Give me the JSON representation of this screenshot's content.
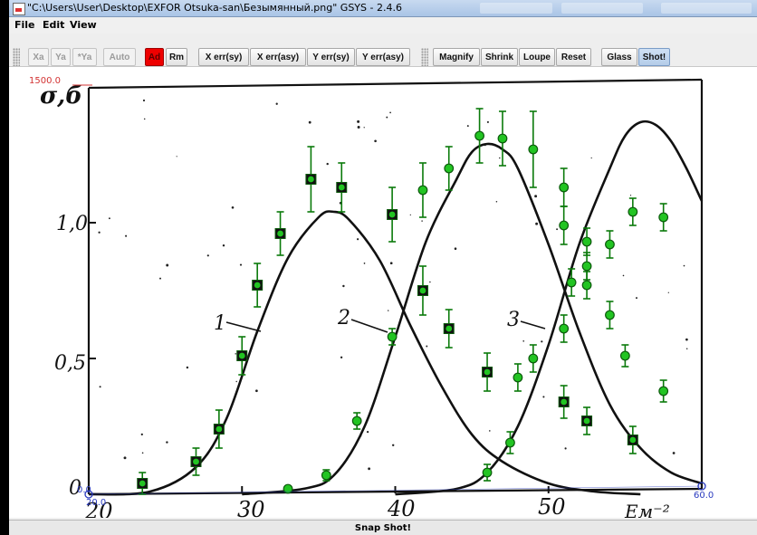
{
  "window": {
    "title": "\"C:\\Users\\User\\Desktop\\EXFOR Otsuka-san\\Безымянный.png\" GSYS - 2.4.6"
  },
  "menu": {
    "file": "File",
    "edit": "Edit",
    "view": "View"
  },
  "toolbar": {
    "xa": "Xa",
    "ya": "Ya",
    "star_ya": "*Ya",
    "auto": "Auto",
    "ad": "Ad",
    "rm": "Rm",
    "x_err_sy": "X err(sy)",
    "x_err_asy": "X err(asy)",
    "y_err_sy": "Y err(sy)",
    "y_err_asy": "Y err(asy)",
    "magnify": "Magnify",
    "shrink": "Shrink",
    "loupe": "Loupe",
    "reset": "Reset",
    "glass": "Glass",
    "shot": "Shot!"
  },
  "status": {
    "label": "Snap Shot!"
  },
  "digitizer": {
    "y_ref_max": "1500.0",
    "y_ref_min": "0.0",
    "x_ref_min": "20.0",
    "x_ref_max": "60.0",
    "colors": {
      "marker": "#22c422",
      "marker_dark": "#0c5a0c",
      "error_bar": "#0a7a0a",
      "ref": "#d33333",
      "ref_blue": "#2a3bbf"
    }
  },
  "chart_data": {
    "type": "scatter",
    "title": "",
    "ylabel": "σ,б",
    "xlabel": "",
    "xlim": [
      20,
      60
    ],
    "ylim": [
      0,
      1.5
    ],
    "x_ticks": [
      "20",
      "30",
      "40",
      "50"
    ],
    "y_ticks": [
      "0",
      "0,5",
      "1,0"
    ],
    "curve_labels": [
      "1",
      "2",
      "3"
    ],
    "axis_fragment": "Ем⁻²",
    "curves": [
      {
        "name": "1",
        "points": [
          [
            20,
            0
          ],
          [
            24,
            0.01
          ],
          [
            27,
            0.1
          ],
          [
            29,
            0.28
          ],
          [
            31,
            0.6
          ],
          [
            33,
            0.87
          ],
          [
            35,
            1.02
          ],
          [
            36,
            1.04
          ],
          [
            37,
            1.01
          ],
          [
            39,
            0.86
          ],
          [
            41,
            0.62
          ],
          [
            43,
            0.4
          ],
          [
            45,
            0.22
          ],
          [
            47,
            0.12
          ],
          [
            50,
            0.04
          ],
          [
            53,
            0.01
          ],
          [
            56,
            0
          ]
        ]
      },
      {
        "name": "2",
        "points": [
          [
            30,
            0
          ],
          [
            34,
            0.02
          ],
          [
            36,
            0.07
          ],
          [
            38,
            0.25
          ],
          [
            40,
            0.58
          ],
          [
            42,
            0.93
          ],
          [
            44,
            1.16
          ],
          [
            45,
            1.26
          ],
          [
            46,
            1.29
          ],
          [
            47,
            1.27
          ],
          [
            48,
            1.2
          ],
          [
            50,
            0.92
          ],
          [
            52,
            0.6
          ],
          [
            54,
            0.33
          ],
          [
            56,
            0.17
          ],
          [
            58,
            0.08
          ],
          [
            60,
            0.04
          ]
        ]
      },
      {
        "name": "3",
        "points": [
          [
            40,
            0
          ],
          [
            44,
            0.02
          ],
          [
            46,
            0.08
          ],
          [
            48,
            0.25
          ],
          [
            50,
            0.55
          ],
          [
            52,
            0.92
          ],
          [
            54,
            1.2
          ],
          [
            55,
            1.32
          ],
          [
            56,
            1.37
          ],
          [
            57,
            1.36
          ],
          [
            58,
            1.3
          ],
          [
            59,
            1.2
          ],
          [
            60,
            1.08
          ]
        ]
      }
    ],
    "series": [
      {
        "name": "squares",
        "points": [
          {
            "x": 23.5,
            "y": 0.04,
            "err": 0.04
          },
          {
            "x": 27.0,
            "y": 0.12,
            "err": 0.05
          },
          {
            "x": 28.5,
            "y": 0.24,
            "err": 0.07
          },
          {
            "x": 30.0,
            "y": 0.51,
            "err": 0.07
          },
          {
            "x": 31.0,
            "y": 0.77,
            "err": 0.08
          },
          {
            "x": 32.5,
            "y": 0.96,
            "err": 0.08
          },
          {
            "x": 34.5,
            "y": 1.16,
            "err": 0.12
          },
          {
            "x": 36.5,
            "y": 1.13,
            "err": 0.09
          },
          {
            "x": 39.8,
            "y": 1.03,
            "err": 0.1
          },
          {
            "x": 41.8,
            "y": 0.75,
            "err": 0.09
          },
          {
            "x": 43.5,
            "y": 0.61,
            "err": 0.07
          },
          {
            "x": 46.0,
            "y": 0.45,
            "err": 0.07
          },
          {
            "x": 51.0,
            "y": 0.34,
            "err": 0.06
          },
          {
            "x": 52.5,
            "y": 0.27,
            "err": 0.05
          },
          {
            "x": 55.5,
            "y": 0.2,
            "err": 0.05
          }
        ]
      },
      {
        "name": "circles",
        "points": [
          {
            "x": 33.0,
            "y": 0.02,
            "err": 0
          },
          {
            "x": 35.5,
            "y": 0.07,
            "err": 0.02
          },
          {
            "x": 37.5,
            "y": 0.27,
            "err": 0.03
          },
          {
            "x": 39.8,
            "y": 0.58,
            "err": 0.03
          },
          {
            "x": 41.8,
            "y": 1.12,
            "err": 0.1
          },
          {
            "x": 43.5,
            "y": 1.2,
            "err": 0.08
          },
          {
            "x": 45.5,
            "y": 1.32,
            "err": 0.1
          },
          {
            "x": 47.0,
            "y": 1.31,
            "err": 0.1
          },
          {
            "x": 49.0,
            "y": 1.27,
            "err": 0.14
          },
          {
            "x": 51.0,
            "y": 1.13,
            "err": 0.07
          },
          {
            "x": 51.0,
            "y": 0.99,
            "err": 0.07
          },
          {
            "x": 52.5,
            "y": 0.93,
            "err": 0.05
          },
          {
            "x": 52.5,
            "y": 0.77,
            "err": 0.05
          },
          {
            "x": 51.0,
            "y": 0.61,
            "err": 0.05
          },
          {
            "x": 49.0,
            "y": 0.5,
            "err": 0.05
          },
          {
            "x": 48.0,
            "y": 0.43,
            "err": 0.05
          },
          {
            "x": 54.0,
            "y": 0.92,
            "err": 0.05
          },
          {
            "x": 54.0,
            "y": 0.66,
            "err": 0.05
          },
          {
            "x": 55.0,
            "y": 0.51,
            "err": 0.04
          },
          {
            "x": 55.5,
            "y": 1.04,
            "err": 0.05
          },
          {
            "x": 57.5,
            "y": 1.02,
            "err": 0.05
          },
          {
            "x": 57.5,
            "y": 0.38,
            "err": 0.04
          },
          {
            "x": 46.0,
            "y": 0.08,
            "err": 0.03
          },
          {
            "x": 47.5,
            "y": 0.19,
            "err": 0.04
          },
          {
            "x": 52.5,
            "y": 0.84,
            "err": 0.05
          },
          {
            "x": 51.5,
            "y": 0.78,
            "err": 0.05
          }
        ]
      }
    ]
  }
}
